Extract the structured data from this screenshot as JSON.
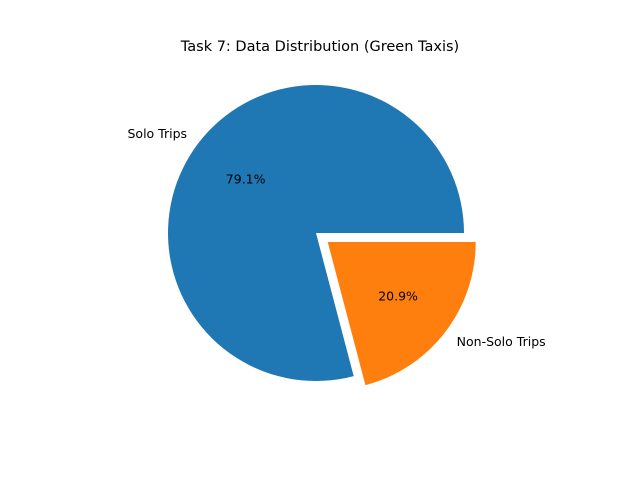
{
  "chart_data": {
    "type": "pie",
    "title": "Task 7: Data Distribution (Green Taxis)",
    "slices": [
      {
        "label": "Solo Trips",
        "value": 79.1,
        "pct_label": "79.1%",
        "color": "#1f77b4",
        "exploded": false
      },
      {
        "label": "Non-Solo Trips",
        "value": 20.9,
        "pct_label": "20.9%",
        "color": "#ff7f0e",
        "exploded": true
      }
    ],
    "legend": "none"
  }
}
